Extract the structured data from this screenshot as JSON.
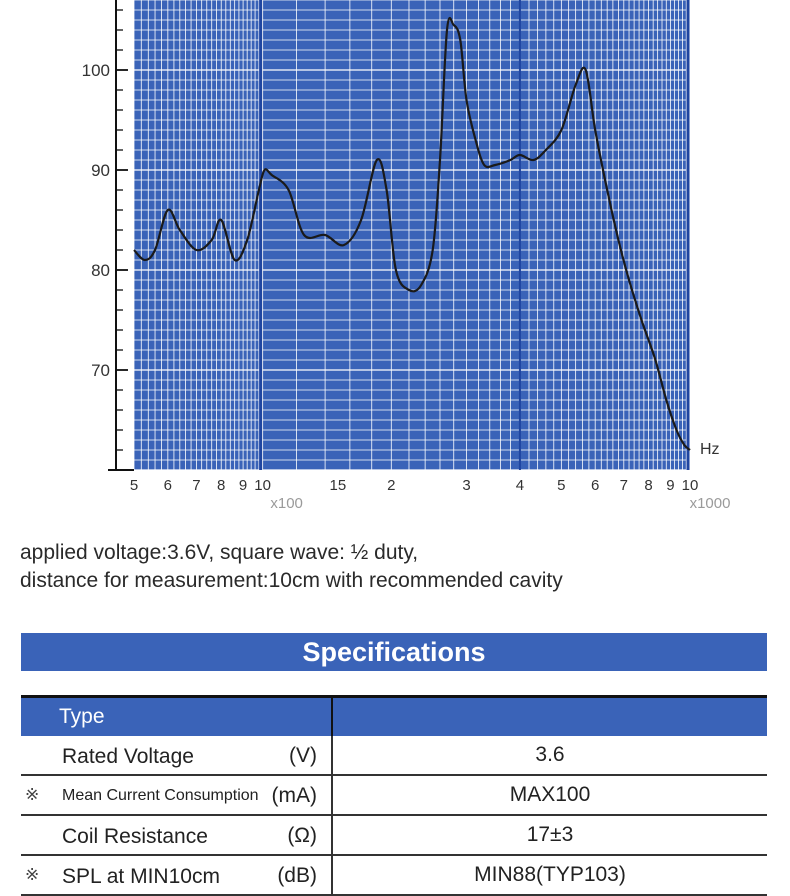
{
  "chart_data": {
    "type": "line",
    "x_scale": "log",
    "xlim": [
      500,
      10000
    ],
    "ylim": [
      60,
      107
    ],
    "y_ticks": [
      70,
      80,
      90,
      100
    ],
    "x_tick_labels": [
      {
        "x": 500,
        "label": "5"
      },
      {
        "x": 600,
        "label": "6"
      },
      {
        "x": 700,
        "label": "7"
      },
      {
        "x": 800,
        "label": "8"
      },
      {
        "x": 900,
        "label": "9"
      },
      {
        "x": 1000,
        "label": "10"
      },
      {
        "x": 1500,
        "label": "15"
      },
      {
        "x": 2000,
        "label": "2"
      },
      {
        "x": 3000,
        "label": "3"
      },
      {
        "x": 4000,
        "label": "4"
      },
      {
        "x": 5000,
        "label": "5"
      },
      {
        "x": 6000,
        "label": "6"
      },
      {
        "x": 7000,
        "label": "7"
      },
      {
        "x": 8000,
        "label": "8"
      },
      {
        "x": 9000,
        "label": "9"
      },
      {
        "x": 10000,
        "label": "10"
      }
    ],
    "x_multiplier_labels": [
      "x100",
      "x1000"
    ],
    "x_unit": "Hz",
    "series": [
      {
        "x": [
          500,
          530,
          560,
          600,
          640,
          700,
          760,
          800,
          860,
          920,
          980,
          1010,
          1050,
          1150,
          1250,
          1400,
          1550,
          1700,
          1850,
          1950,
          2050,
          2200,
          2350,
          2500,
          2600,
          2700,
          2800,
          2900,
          3000,
          3150,
          3300,
          3500,
          3800,
          4000,
          4300,
          4600,
          5000,
          5400,
          5700,
          6000,
          6400,
          6800,
          7200,
          7700,
          8300,
          8800,
          9300,
          9700,
          10000
        ],
        "y": [
          82,
          81,
          82,
          86,
          84,
          82,
          83,
          85,
          81,
          83,
          88,
          90,
          89.5,
          88,
          83.5,
          83.5,
          82.5,
          85,
          91,
          88,
          80,
          78,
          78.5,
          82,
          91,
          104,
          104.5,
          103,
          97,
          93,
          90.5,
          90.5,
          91,
          91.5,
          91,
          92,
          94,
          98.5,
          100,
          94,
          88,
          83,
          79,
          75,
          71,
          67,
          64,
          62.5,
          62
        ]
      }
    ]
  },
  "notes": {
    "line1": "applied voltage:3.6V, square wave: ½ duty,",
    "line2": "distance for measurement:10cm with recommended cavity"
  },
  "specs": {
    "title": "Specifications",
    "header": {
      "type_label": "Type",
      "value_label": ""
    },
    "rows": [
      {
        "mark": "",
        "name": "Rated Voltage",
        "unit": "(V)",
        "value": "3.6"
      },
      {
        "mark": "※",
        "name": "Mean Current Consumption",
        "unit": "(mA)",
        "value": "MAX100"
      },
      {
        "mark": "",
        "name": "Coil Resistance",
        "unit": "(Ω)",
        "value": "17±3"
      },
      {
        "mark": "※",
        "name": "SPL at MIN10cm",
        "unit": "(dB)",
        "value": "MIN88(TYP103)"
      }
    ]
  },
  "colors": {
    "grid_background": "#3a63b8",
    "grid_line": "#ffffff",
    "curve": "#1a1a1a",
    "header_background": "#3a63b8"
  }
}
